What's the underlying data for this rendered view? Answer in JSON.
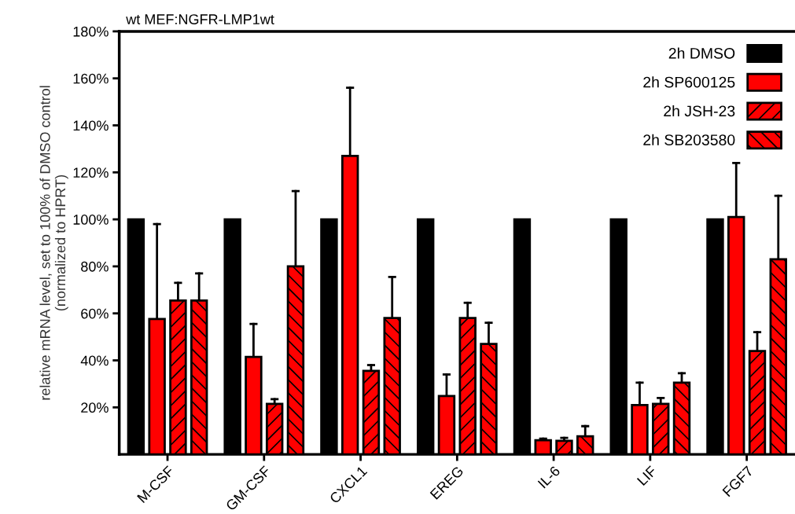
{
  "chart_data": {
    "type": "bar",
    "title": "wt MEF:NGFR-LMP1wt",
    "ylabel": "relative mRNA level, set to 100% of DMSO control\n(normalized to HPRT)",
    "categories": [
      "M-CSF",
      "GM-CSF",
      "CXCL1",
      "EREG",
      "IL-6",
      "LIF",
      "FGF7"
    ],
    "series": [
      {
        "name": "2h DMSO",
        "color": "#000000",
        "values": [
          100,
          100,
          100,
          100,
          100,
          100,
          100
        ]
      },
      {
        "name": "2h SP600125",
        "color": "#ff0000",
        "values": [
          57.6,
          41.5,
          127,
          24.8,
          6,
          21,
          101
        ],
        "errors": [
          [
            57.6,
            98
          ],
          [
            41.5,
            55.5
          ],
          [
            127,
            156
          ],
          [
            24.8,
            34
          ],
          [
            6,
            6.7
          ],
          [
            21,
            30.5
          ],
          [
            101,
            124
          ]
        ]
      },
      {
        "name": "2h JSH-23",
        "color": "#ff0000",
        "values": [
          65.5,
          21.5,
          35.5,
          58,
          5.8,
          21.5,
          44
        ],
        "errors": [
          [
            65.5,
            73
          ],
          [
            21.5,
            23.5
          ],
          [
            35.5,
            38
          ],
          [
            58,
            64.5
          ],
          [
            5.8,
            7
          ],
          [
            21.5,
            24
          ],
          [
            44,
            52
          ]
        ]
      },
      {
        "name": "2h SB203580",
        "color": "#ff0000",
        "values": [
          65.5,
          80,
          58,
          47,
          7.7,
          30.5,
          83
        ],
        "errors": [
          [
            65.5,
            77
          ],
          [
            80,
            112
          ],
          [
            58,
            75.5
          ],
          [
            47,
            56
          ],
          [
            7.7,
            12
          ],
          [
            30.5,
            34.5
          ],
          [
            83,
            110
          ]
        ]
      }
    ],
    "ylim": [
      0,
      180
    ],
    "yticks": [
      {
        "value": 20,
        "label": "20%"
      },
      {
        "value": 40,
        "label": "40%"
      },
      {
        "value": 60,
        "label": "60%"
      },
      {
        "value": 80,
        "label": "80%"
      },
      {
        "value": 100,
        "label": "100%"
      },
      {
        "value": 120,
        "label": "120%"
      },
      {
        "value": 140,
        "label": "140%"
      },
      {
        "value": 160,
        "label": "160%"
      },
      {
        "value": 180,
        "label": "180%"
      }
    ],
    "grid": false,
    "legend": "top right"
  }
}
